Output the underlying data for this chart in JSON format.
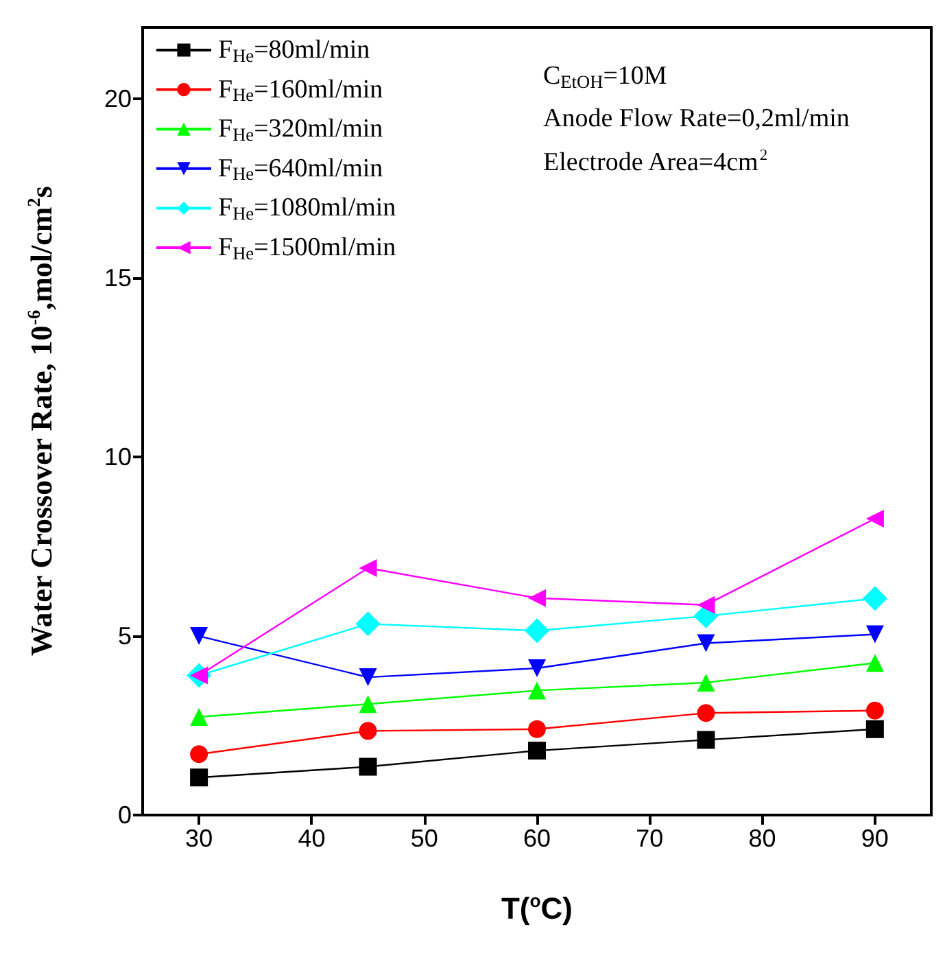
{
  "chart_data": {
    "type": "line",
    "xlabel": "T($^{o}$C)",
    "ylabel": "Water Crossover Rate, 10$^{-6}$,mol/cm$^{2}$s",
    "x": [
      30,
      45,
      60,
      75,
      90
    ],
    "xlim": [
      25,
      95
    ],
    "xticks": [
      30,
      40,
      50,
      60,
      70,
      80,
      90
    ],
    "ylim": [
      0,
      22
    ],
    "yticks": [
      0,
      5,
      10,
      15,
      20
    ],
    "grid": false,
    "legend": "top left",
    "annotations": [
      "C$_{EtOH}$=10M",
      "Anode Flow Rate=0,2ml/min",
      "Electrode Area=4cm$^{2}$"
    ],
    "series": [
      {
        "name": "F$_{He}$=80ml/min",
        "color": "#000000",
        "marker": "square",
        "values": [
          1.05,
          1.35,
          1.8,
          2.1,
          2.4
        ]
      },
      {
        "name": "F$_{He}$=160ml/min",
        "color": "#ff0000",
        "marker": "circle",
        "values": [
          1.7,
          2.35,
          2.4,
          2.85,
          2.92
        ]
      },
      {
        "name": "F$_{He}$=320ml/min",
        "color": "#00ff00",
        "marker": "triangle",
        "values": [
          2.74,
          3.1,
          3.48,
          3.7,
          4.25
        ]
      },
      {
        "name": "F$_{He}$=640ml/min",
        "color": "#0000ff",
        "marker": "triangle-down",
        "values": [
          5.0,
          3.85,
          4.1,
          4.8,
          5.05
        ]
      },
      {
        "name": "F$_{He}$=1080ml/min",
        "color": "#00ffff",
        "marker": "diamond",
        "values": [
          3.9,
          5.34,
          5.15,
          5.56,
          6.05
        ]
      },
      {
        "name": "F$_{He}$=1500ml/min",
        "color": "#ff00ff",
        "marker": "triangle-left",
        "values": [
          3.9,
          6.9,
          6.06,
          5.87,
          8.28
        ]
      }
    ]
  }
}
